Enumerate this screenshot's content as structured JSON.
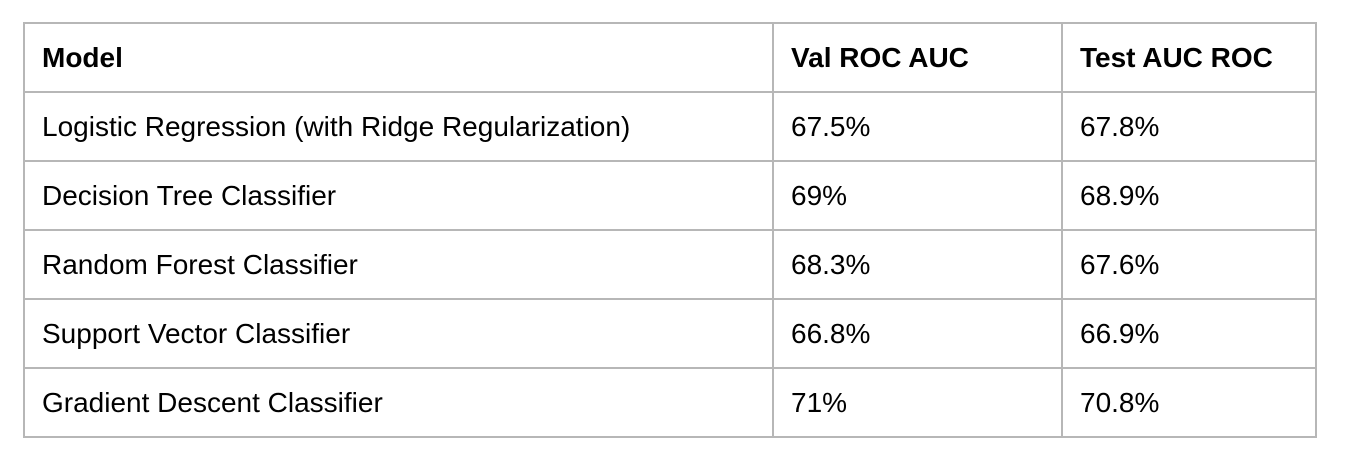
{
  "table": {
    "headers": [
      "Model",
      "Val ROC AUC",
      "Test AUC ROC"
    ],
    "rows": [
      [
        "Logistic Regression (with Ridge Regularization)",
        "67.5%",
        "67.8%"
      ],
      [
        "Decision Tree Classifier",
        "69%",
        "68.9%"
      ],
      [
        "Random Forest Classifier",
        "68.3%",
        "67.6%"
      ],
      [
        "Support Vector Classifier",
        "66.8%",
        "66.9%"
      ],
      [
        "Gradient Descent Classifier",
        "71%",
        "70.8%"
      ]
    ]
  },
  "colors": {
    "border": "#b7b7b7",
    "text": "#000000",
    "background": "#ffffff"
  }
}
